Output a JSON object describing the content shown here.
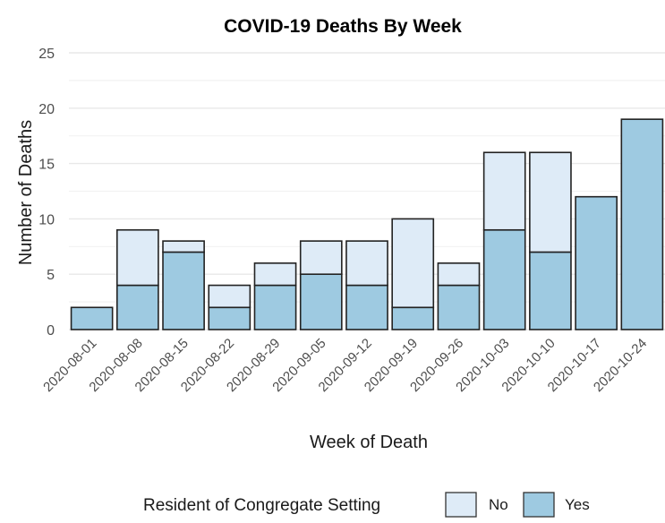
{
  "chart_data": {
    "type": "bar",
    "stacked": true,
    "title": "COVID-19 Deaths By Week",
    "xlabel": "Week of Death",
    "ylabel": "Number of Deaths",
    "ylim": [
      0,
      25
    ],
    "yticks": [
      0,
      5,
      10,
      15,
      20,
      25
    ],
    "grid": true,
    "legend_position": "bottom",
    "legend_title": "Resident of Congregate Setting",
    "categories": [
      "2020-08-01",
      "2020-08-08",
      "2020-08-15",
      "2020-08-22",
      "2020-08-29",
      "2020-09-05",
      "2020-09-12",
      "2020-09-19",
      "2020-09-26",
      "2020-10-03",
      "2020-10-10",
      "2020-10-17",
      "2020-10-24"
    ],
    "series": [
      {
        "name": "Yes",
        "color": "#9ecae1",
        "values": [
          2,
          4,
          7,
          2,
          4,
          5,
          4,
          2,
          4,
          9,
          7,
          12,
          19
        ]
      },
      {
        "name": "No",
        "color": "#deebf7",
        "values": [
          0,
          5,
          1,
          2,
          2,
          3,
          4,
          8,
          2,
          7,
          9,
          0,
          0
        ]
      }
    ]
  }
}
